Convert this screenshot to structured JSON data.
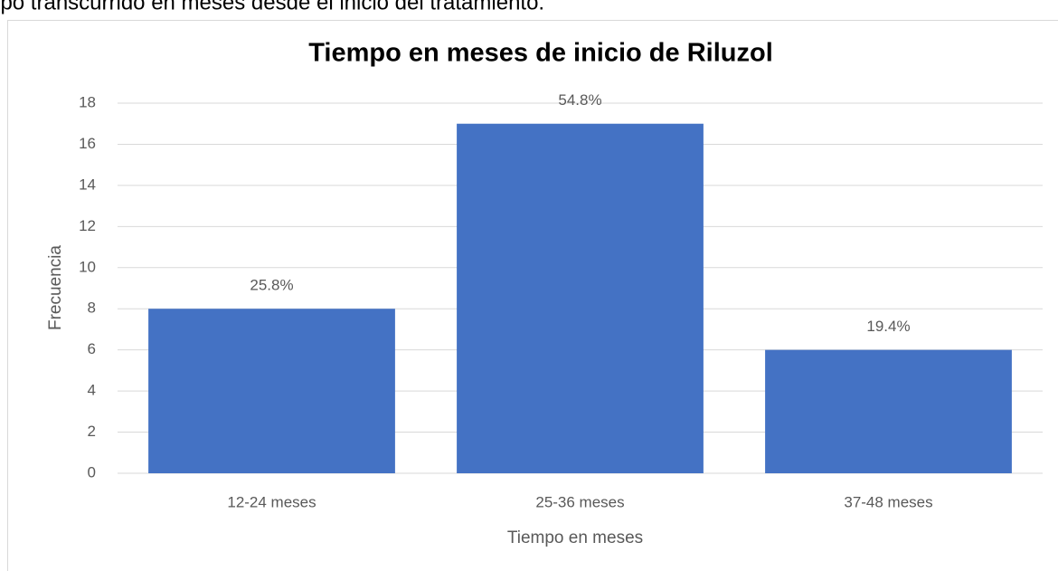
{
  "caption": "Tiempo transcurrido en meses desde el inicio del tratamiento.",
  "chart_data": {
    "type": "bar",
    "title": "Tiempo en meses de inicio de Riluzol",
    "x_label": "Tiempo en meses",
    "y_label": "Frecuencia",
    "categories": [
      "12-24 meses",
      "25-36 meses",
      "37-48 meses"
    ],
    "values": [
      8,
      17,
      6
    ],
    "data_labels": [
      "25.8%",
      "54.8%",
      "19.4%"
    ],
    "color": "#4472c4",
    "ylim": [
      0,
      18
    ],
    "yticks": [
      0,
      2,
      4,
      6,
      8,
      10,
      12,
      14,
      16,
      18
    ],
    "grid": true
  }
}
